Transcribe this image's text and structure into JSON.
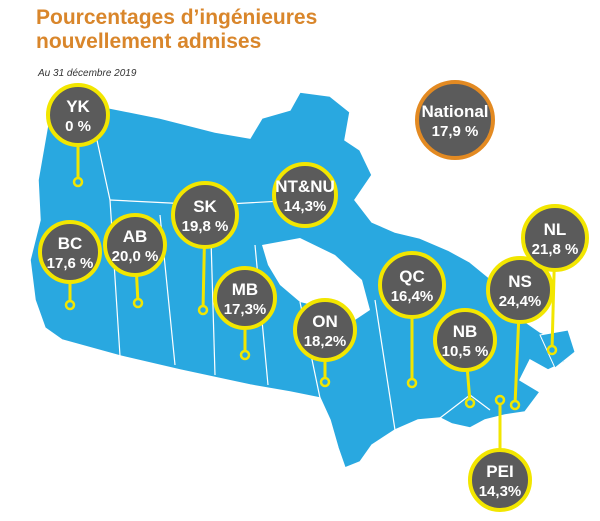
{
  "header": {
    "title": [
      "Pourcentages d’ingénieures",
      "nouvellement admises"
    ],
    "subtitle": "Au 31 décembre 2019"
  },
  "national": {
    "code": "National",
    "label": "17,9 %"
  },
  "regions": [
    {
      "code": "YK",
      "label": "0 %"
    },
    {
      "code": "BC",
      "label": "17,6 %"
    },
    {
      "code": "AB",
      "label": "20,0 %"
    },
    {
      "code": "SK",
      "label": "19,8 %"
    },
    {
      "code": "NT&NU",
      "label": "14,3%"
    },
    {
      "code": "MB",
      "label": "17,3%"
    },
    {
      "code": "ON",
      "label": "18,2%"
    },
    {
      "code": "QC",
      "label": "16,4%"
    },
    {
      "code": "NB",
      "label": "10,5 %"
    },
    {
      "code": "NS",
      "label": "24,4%"
    },
    {
      "code": "NL",
      "label": "21,8 %"
    },
    {
      "code": "PEI",
      "label": "14,3%"
    }
  ]
}
